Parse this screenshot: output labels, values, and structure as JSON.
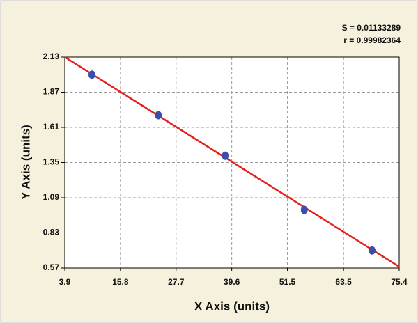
{
  "chart_data": {
    "type": "scatter",
    "annotations": [
      "S = 0.01133289",
      "r = 0.99982364"
    ],
    "x_label": "X Axis (units)",
    "y_label": "Y Axis (units)",
    "xlim": [
      3.9,
      75.4
    ],
    "ylim": [
      0.57,
      2.13
    ],
    "xticks": [
      3.9,
      15.8,
      27.7,
      39.6,
      51.5,
      63.5,
      75.4
    ],
    "yticks": [
      0.57,
      0.83,
      1.09,
      1.35,
      1.61,
      1.87,
      2.13
    ],
    "grid": true,
    "points": {
      "x": [
        9.7,
        23.9,
        38.2,
        55.1,
        69.6
      ],
      "y": [
        2.0,
        1.7,
        1.4,
        1.0,
        0.7
      ],
      "color": "#3b4fa8"
    },
    "fit_line": {
      "x": [
        3.9,
        75.4
      ],
      "y": [
        2.13,
        0.58
      ],
      "color": "#e3201b"
    }
  }
}
